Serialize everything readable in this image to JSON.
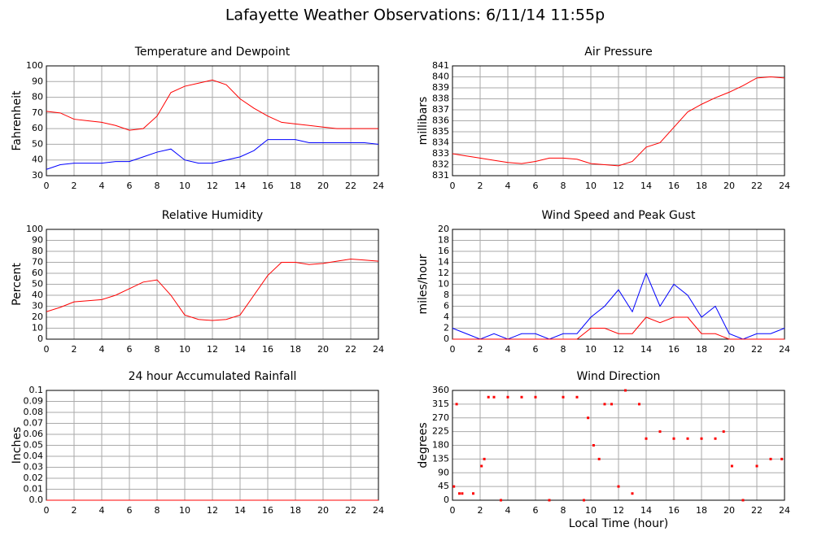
{
  "title": "Lafayette Weather Observations: 6/11/14 11:55p",
  "chart_data": [
    {
      "type": "line",
      "title": "Temperature and Dewpoint",
      "ylabel": "Fahrenheit",
      "x": [
        0,
        1,
        2,
        3,
        4,
        5,
        6,
        7,
        8,
        9,
        10,
        11,
        12,
        13,
        14,
        15,
        16,
        17,
        18,
        19,
        20,
        21,
        22,
        23,
        24
      ],
      "series": [
        {
          "color": "#ff0000",
          "values": [
            71,
            70,
            66,
            65,
            64,
            62,
            59,
            60,
            68,
            83,
            87,
            89,
            91,
            88,
            79,
            73,
            68,
            64,
            63,
            62,
            61,
            60,
            60,
            60,
            60
          ]
        },
        {
          "color": "#0000ff",
          "values": [
            34,
            37,
            38,
            38,
            38,
            39,
            39,
            42,
            45,
            47,
            40,
            38,
            38,
            40,
            42,
            46,
            53,
            53,
            53,
            51,
            51,
            51,
            51,
            51,
            50
          ]
        }
      ],
      "xlim": [
        0,
        24
      ],
      "xticks": [
        0,
        2,
        4,
        6,
        8,
        10,
        12,
        14,
        16,
        18,
        20,
        22,
        24
      ],
      "ylim": [
        30,
        100
      ],
      "yticks": [
        30,
        40,
        50,
        60,
        70,
        80,
        90,
        100
      ],
      "grid": true
    },
    {
      "type": "line",
      "title": "Air Pressure",
      "ylabel": "millibars",
      "x": [
        0,
        1,
        2,
        3,
        4,
        5,
        6,
        7,
        8,
        9,
        10,
        11,
        12,
        13,
        14,
        15,
        16,
        17,
        18,
        19,
        20,
        21,
        22,
        23,
        24
      ],
      "series": [
        {
          "color": "#ff0000",
          "values": [
            833,
            832.8,
            832.6,
            832.4,
            832.2,
            832.1,
            832.3,
            832.6,
            832.6,
            832.5,
            832.1,
            832.0,
            831.9,
            832.3,
            833.6,
            834.0,
            835.4,
            836.8,
            837.5,
            838.1,
            838.6,
            839.2,
            839.9,
            840.0,
            839.9
          ]
        }
      ],
      "xlim": [
        0,
        24
      ],
      "xticks": [
        0,
        2,
        4,
        6,
        8,
        10,
        12,
        14,
        16,
        18,
        20,
        22,
        24
      ],
      "ylim": [
        831,
        841
      ],
      "yticks": [
        831,
        832,
        833,
        834,
        835,
        836,
        837,
        838,
        839,
        840,
        841
      ],
      "grid": true
    },
    {
      "type": "line",
      "title": "Relative Humidity",
      "ylabel": "Percent",
      "x": [
        0,
        1,
        2,
        3,
        4,
        5,
        6,
        7,
        8,
        9,
        10,
        11,
        12,
        13,
        14,
        15,
        16,
        17,
        18,
        19,
        20,
        21,
        22,
        23,
        24
      ],
      "series": [
        {
          "color": "#ff0000",
          "values": [
            25,
            29,
            34,
            35,
            36,
            40,
            46,
            52,
            54,
            40,
            22,
            18,
            17,
            18,
            22,
            40,
            58,
            70,
            70,
            68,
            69,
            71,
            73,
            72,
            71
          ]
        }
      ],
      "xlim": [
        0,
        24
      ],
      "xticks": [
        0,
        2,
        4,
        6,
        8,
        10,
        12,
        14,
        16,
        18,
        20,
        22,
        24
      ],
      "ylim": [
        0,
        100
      ],
      "yticks": [
        0,
        10,
        20,
        30,
        40,
        50,
        60,
        70,
        80,
        90,
        100
      ],
      "grid": true
    },
    {
      "type": "line",
      "title": "Wind Speed and Peak Gust",
      "ylabel": "miles/hour",
      "x": [
        0,
        1,
        2,
        3,
        4,
        5,
        6,
        7,
        8,
        9,
        10,
        11,
        12,
        13,
        14,
        15,
        16,
        17,
        18,
        19,
        20,
        21,
        22,
        23,
        24
      ],
      "series": [
        {
          "color": "#0000ff",
          "values": [
            2,
            1,
            0,
            1,
            0,
            1,
            1,
            0,
            1,
            1,
            4,
            6,
            9,
            5,
            12,
            6,
            10,
            8,
            4,
            6,
            1,
            0,
            1,
            1,
            2
          ]
        },
        {
          "color": "#ff0000",
          "values": [
            0,
            0,
            0,
            0,
            0,
            0,
            0,
            0,
            0,
            0,
            2,
            2,
            1,
            1,
            4,
            3,
            4,
            4,
            1,
            1,
            0,
            0,
            0,
            0,
            0
          ]
        }
      ],
      "xlim": [
        0,
        24
      ],
      "xticks": [
        0,
        2,
        4,
        6,
        8,
        10,
        12,
        14,
        16,
        18,
        20,
        22,
        24
      ],
      "ylim": [
        0,
        20
      ],
      "yticks": [
        0,
        2,
        4,
        6,
        8,
        10,
        12,
        14,
        16,
        18,
        20
      ],
      "grid": true
    },
    {
      "type": "line",
      "title": "24 hour Accumulated Rainfall",
      "ylabel": "Inches",
      "x": [
        0,
        24
      ],
      "series": [
        {
          "color": "#ff0000",
          "values": [
            0,
            0
          ]
        }
      ],
      "xlim": [
        0,
        24
      ],
      "xticks": [
        0,
        2,
        4,
        6,
        8,
        10,
        12,
        14,
        16,
        18,
        20,
        22,
        24
      ],
      "ylim": [
        0,
        0.1
      ],
      "yticks": [
        {
          "value": 0,
          "label": "0.0"
        },
        0.01,
        0.02,
        0.03,
        0.04,
        0.05,
        0.06,
        0.07,
        0.08,
        0.09,
        0.1
      ],
      "grid": true
    },
    {
      "type": "scatter",
      "title": "Wind Direction",
      "ylabel": "degrees",
      "xlabel": "Local Time (hour)",
      "x": [
        0.1,
        0.3,
        0.5,
        0.7,
        1.5,
        2.1,
        2.3,
        2.6,
        3,
        3.5,
        4,
        5,
        6,
        7,
        8,
        9,
        9.5,
        9.8,
        10.2,
        10.6,
        11,
        11.5,
        12,
        12.5,
        13,
        13.5,
        14,
        15,
        16,
        17,
        18,
        19,
        19.6,
        20.2,
        21,
        22,
        23,
        23.8
      ],
      "series": [
        {
          "color": "#ff0000",
          "values": [
            45,
            315,
            22,
            22,
            22,
            112,
            135,
            338,
            338,
            0,
            338,
            338,
            338,
            0,
            338,
            338,
            0,
            270,
            180,
            135,
            315,
            315,
            45,
            360,
            22,
            315,
            202,
            225,
            202,
            202,
            202,
            202,
            225,
            112,
            0,
            112,
            135,
            135
          ]
        }
      ],
      "xlim": [
        0,
        24
      ],
      "xticks": [
        0,
        2,
        4,
        6,
        8,
        10,
        12,
        14,
        16,
        18,
        20,
        22,
        24
      ],
      "ylim": [
        0,
        360
      ],
      "yticks": [
        0,
        45,
        90,
        135,
        180,
        225,
        270,
        315,
        360
      ],
      "grid": true
    }
  ]
}
